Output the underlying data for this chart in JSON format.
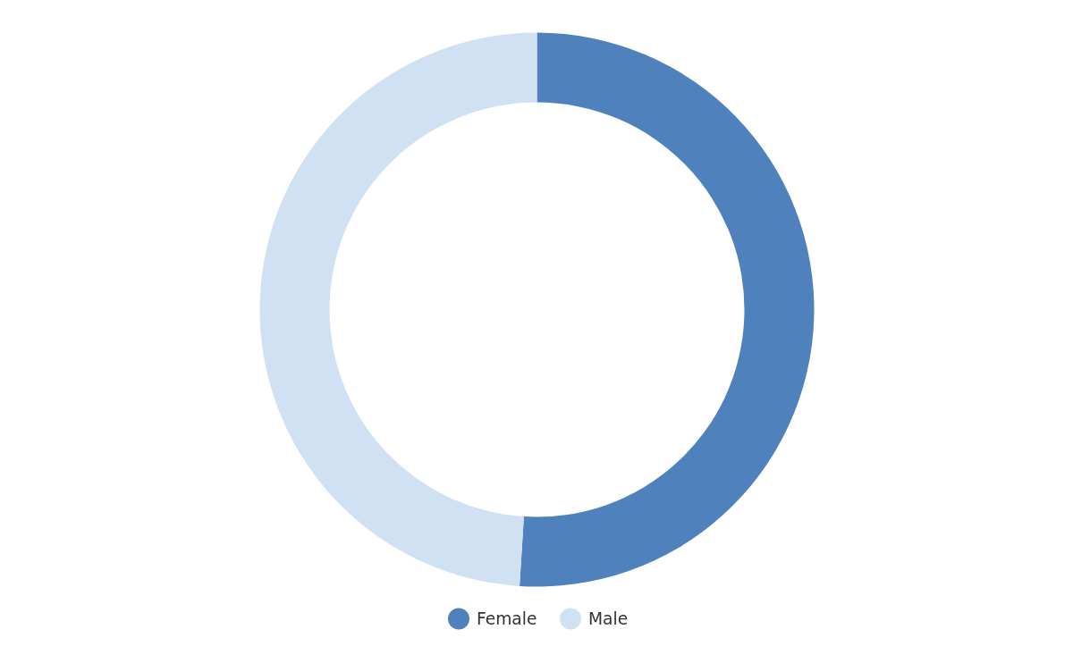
{
  "chart_data": {
    "type": "donut",
    "categories": [
      "Female",
      "Male"
    ],
    "values": [
      51,
      49
    ],
    "colors": [
      "#4f81bd",
      "#cfe1f2"
    ],
    "legend": "bottom"
  }
}
